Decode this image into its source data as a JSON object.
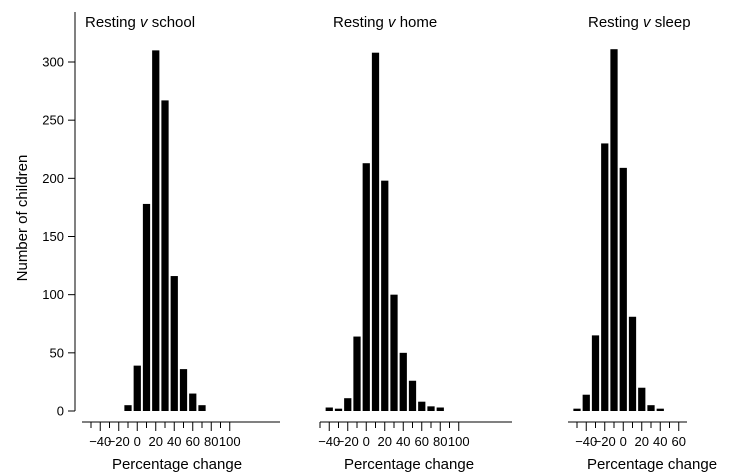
{
  "chart_data": {
    "type": "bar",
    "ylabel": "Number of children",
    "ylim": [
      0,
      340
    ],
    "yticks": [
      0,
      50,
      100,
      150,
      200,
      250,
      300
    ],
    "panels": [
      {
        "title_prefix": "Resting ",
        "title_italic": "v",
        "title_suffix": " school",
        "xlabel": "Percentage change",
        "xlim": [
          -50,
          105
        ],
        "xtick_labels": [
          "-40",
          "-20",
          "0",
          "20",
          "40",
          "60",
          "80",
          "100"
        ],
        "xtick_values": [
          -40,
          -20,
          0,
          20,
          40,
          60,
          80,
          100
        ],
        "bins": [
          {
            "x": -10,
            "y": 5
          },
          {
            "x": 0,
            "y": 39
          },
          {
            "x": 10,
            "y": 178
          },
          {
            "x": 20,
            "y": 310
          },
          {
            "x": 30,
            "y": 267
          },
          {
            "x": 40,
            "y": 116
          },
          {
            "x": 50,
            "y": 36
          },
          {
            "x": 60,
            "y": 15
          },
          {
            "x": 70,
            "y": 5
          }
        ]
      },
      {
        "title_prefix": "Resting ",
        "title_italic": "v",
        "title_suffix": " home",
        "xlabel": "Percentage change",
        "xlim": [
          -50,
          105
        ],
        "xtick_labels": [
          "-40",
          "-20",
          "0",
          "20",
          "40",
          "60",
          "80",
          "100"
        ],
        "xtick_values": [
          -40,
          -20,
          0,
          20,
          40,
          60,
          80,
          100
        ],
        "bins": [
          {
            "x": -40,
            "y": 3
          },
          {
            "x": -30,
            "y": 2
          },
          {
            "x": -20,
            "y": 11
          },
          {
            "x": -10,
            "y": 64
          },
          {
            "x": 0,
            "y": 213
          },
          {
            "x": 10,
            "y": 308
          },
          {
            "x": 20,
            "y": 198
          },
          {
            "x": 30,
            "y": 100
          },
          {
            "x": 40,
            "y": 50
          },
          {
            "x": 50,
            "y": 26
          },
          {
            "x": 60,
            "y": 8
          },
          {
            "x": 70,
            "y": 4
          },
          {
            "x": 80,
            "y": 3
          }
        ]
      },
      {
        "title_prefix": "Resting ",
        "title_italic": "v",
        "title_suffix": " sleep",
        "xlabel": "Percentage change",
        "xlim": [
          -50,
          65
        ],
        "xtick_labels": [
          "-40",
          "-20",
          "0",
          "20",
          "40",
          "60"
        ],
        "xtick_values": [
          -40,
          -20,
          0,
          20,
          40,
          60
        ],
        "bins": [
          {
            "x": -50,
            "y": 2
          },
          {
            "x": -40,
            "y": 14
          },
          {
            "x": -30,
            "y": 65
          },
          {
            "x": -20,
            "y": 230
          },
          {
            "x": -10,
            "y": 311
          },
          {
            "x": 0,
            "y": 209
          },
          {
            "x": 10,
            "y": 81
          },
          {
            "x": 20,
            "y": 20
          },
          {
            "x": 30,
            "y": 5
          },
          {
            "x": 40,
            "y": 2
          }
        ]
      }
    ]
  }
}
